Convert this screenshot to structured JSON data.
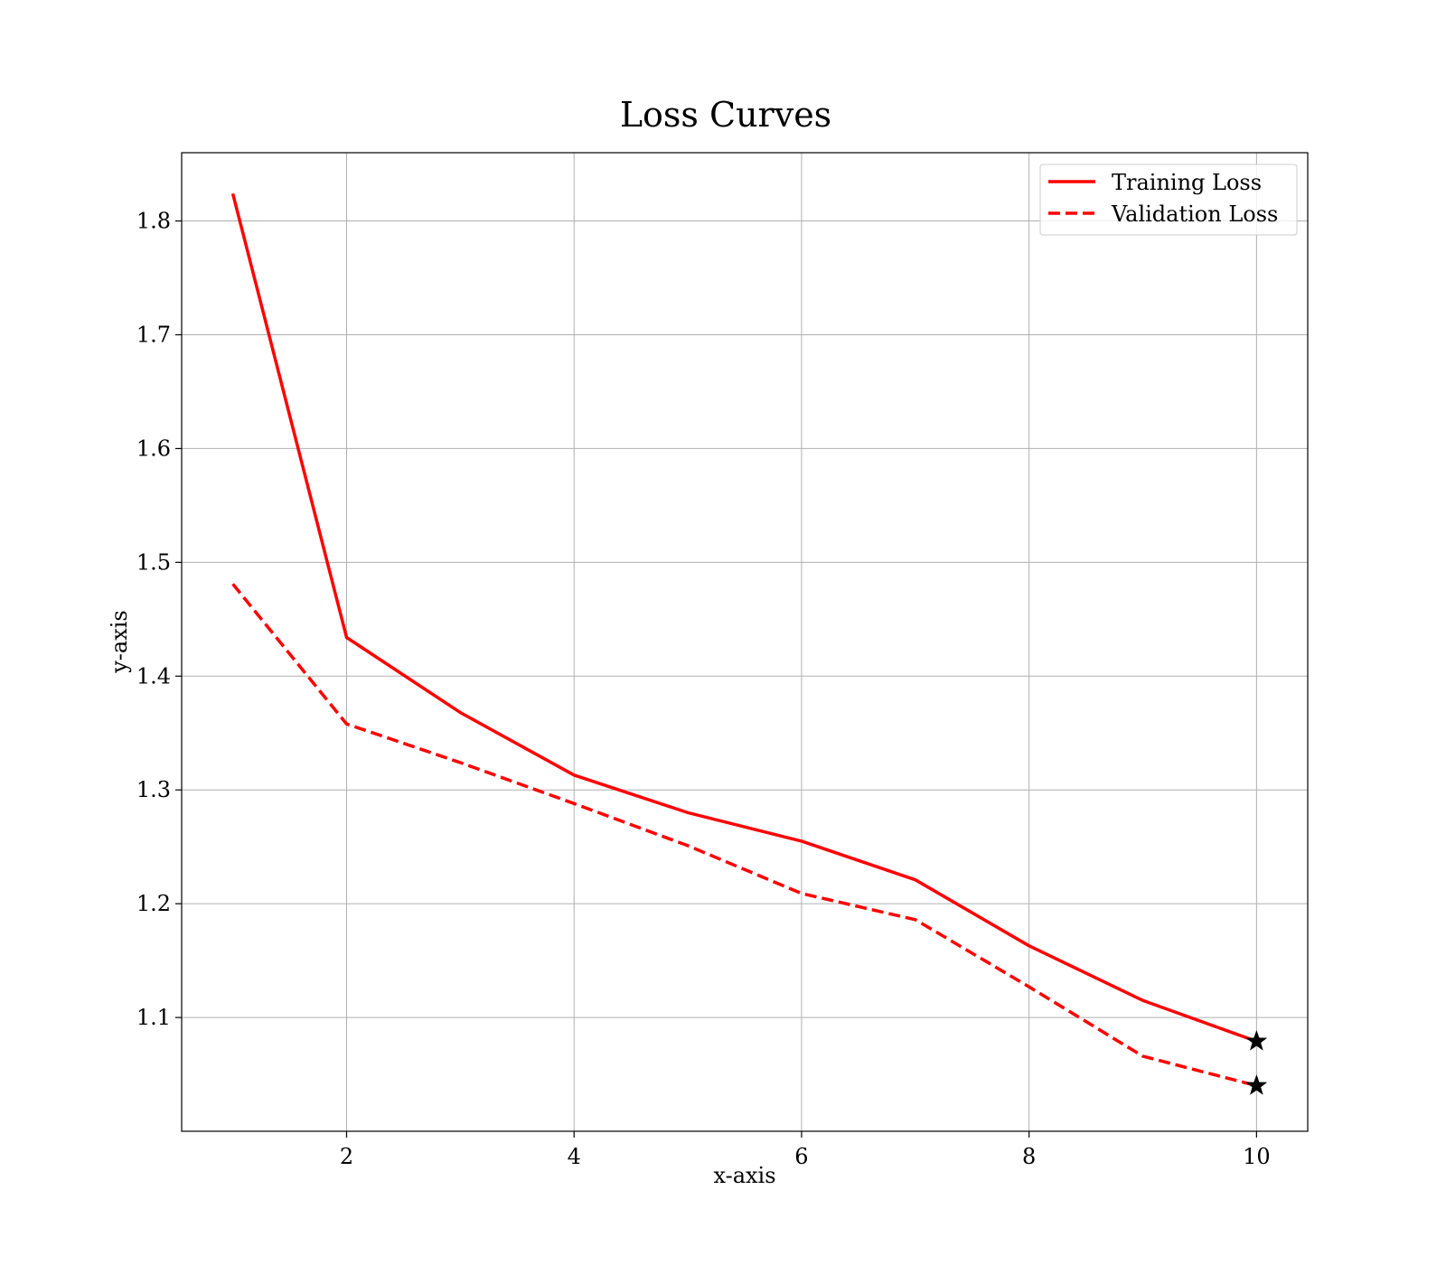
{
  "chart_data": {
    "type": "line",
    "title": "Loss Curves",
    "xlabel": "x-axis",
    "ylabel": "y-axis",
    "xlim": [
      0.55,
      10.45
    ],
    "ylim": [
      1.0,
      1.86
    ],
    "xticks": [
      2,
      4,
      6,
      8,
      10
    ],
    "yticks": [
      1.1,
      1.2,
      1.3,
      1.4,
      1.5,
      1.6,
      1.7,
      1.8
    ],
    "grid": true,
    "legend_position": "top-right",
    "x": [
      1,
      2,
      3,
      4,
      5,
      6,
      7,
      8,
      9,
      10
    ],
    "series": [
      {
        "name": "Training Loss",
        "style": "solid",
        "color": "#ff0000",
        "values": [
          1.824,
          1.434,
          1.368,
          1.313,
          1.28,
          1.255,
          1.221,
          1.163,
          1.115,
          1.079
        ]
      },
      {
        "name": "Validation Loss",
        "style": "dashed",
        "color": "#ff0000",
        "values": [
          1.481,
          1.358,
          1.324,
          1.288,
          1.251,
          1.209,
          1.186,
          1.127,
          1.066,
          1.04
        ]
      }
    ],
    "markers": [
      {
        "series": "Training Loss",
        "x": 10,
        "y": 1.079,
        "shape": "star",
        "color": "#000000"
      },
      {
        "series": "Validation Loss",
        "x": 10,
        "y": 1.04,
        "shape": "star",
        "color": "#000000"
      }
    ]
  }
}
